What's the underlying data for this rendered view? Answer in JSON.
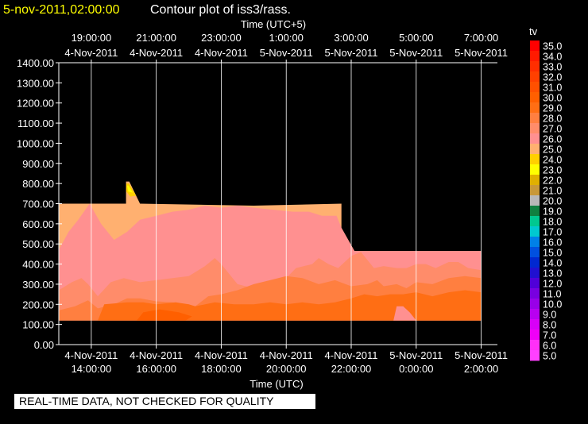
{
  "header": {
    "timestamp": "5-nov-2011,02:00:00",
    "title": "Contour plot of iss3/rass.",
    "timestamp_color": "#ffff00",
    "title_color": "#ffffff"
  },
  "notice": "REAL-TIME DATA, NOT CHECKED FOR QUALITY",
  "chart_data": {
    "type": "heatmap",
    "title": "Contour plot of iss3/rass.",
    "xlabel": "Time (UTC)",
    "x2label": "Time (UTC+5)",
    "ylabel": "",
    "ylim": [
      0,
      1400
    ],
    "yticks": [
      "0.00",
      "100.00",
      "200.00",
      "300.00",
      "400.00",
      "500.00",
      "600.00",
      "700.00",
      "800.00",
      "900.00",
      "1000.00",
      "1100.00",
      "1200.00",
      "1300.00",
      "1400.00"
    ],
    "xlim_hours": [
      13.0,
      26.5
    ],
    "x_bottom_ticks": [
      {
        "date": "4-Nov-2011",
        "time": "14:00:00",
        "hour": 14
      },
      {
        "date": "4-Nov-2011",
        "time": "16:00:00",
        "hour": 16
      },
      {
        "date": "4-Nov-2011",
        "time": "18:00:00",
        "hour": 18
      },
      {
        "date": "4-Nov-2011",
        "time": "20:00:00",
        "hour": 20
      },
      {
        "date": "4-Nov-2011",
        "time": "22:00:00",
        "hour": 22
      },
      {
        "date": "5-Nov-2011",
        "time": "0:00:00",
        "hour": 24
      },
      {
        "date": "5-Nov-2011",
        "time": "2:00:00",
        "hour": 26
      }
    ],
    "x_top_ticks": [
      {
        "time": "19:00:00",
        "date": "4-Nov-2011",
        "hour": 14
      },
      {
        "time": "21:00:00",
        "date": "4-Nov-2011",
        "hour": 16
      },
      {
        "time": "23:00:00",
        "date": "4-Nov-2011",
        "hour": 18
      },
      {
        "time": "1:00:00",
        "date": "5-Nov-2011",
        "hour": 20
      },
      {
        "time": "3:00:00",
        "date": "5-Nov-2011",
        "hour": 22
      },
      {
        "time": "5:00:00",
        "date": "5-Nov-2011",
        "hour": 24
      },
      {
        "time": "7:00:00",
        "date": "5-Nov-2011",
        "hour": 26
      }
    ],
    "grid": true,
    "colorbar": {
      "label": "tv",
      "levels": [
        {
          "label": "35.0",
          "color": "#ff0000"
        },
        {
          "label": "34.0",
          "color": "#ff1a00"
        },
        {
          "label": "33.0",
          "color": "#ff2e00"
        },
        {
          "label": "32.0",
          "color": "#ff4000"
        },
        {
          "label": "31.0",
          "color": "#ff5000"
        },
        {
          "label": "30.0",
          "color": "#ff5f00"
        },
        {
          "label": "29.0",
          "color": "#ff6e14"
        },
        {
          "label": "28.0",
          "color": "#ff7f40"
        },
        {
          "label": "27.0",
          "color": "#ff8c6a"
        },
        {
          "label": "26.0",
          "color": "#ff9090"
        },
        {
          "label": "25.0",
          "color": "#ffb070"
        },
        {
          "label": "24.0",
          "color": "#ffd000"
        },
        {
          "label": "23.0",
          "color": "#ffff00"
        },
        {
          "label": "22.0",
          "color": "#e0b000"
        },
        {
          "label": "21.0",
          "color": "#c89838"
        },
        {
          "label": "20.0",
          "color": "#b8b8b8"
        },
        {
          "label": "19.0",
          "color": "#108040"
        },
        {
          "label": "18.0",
          "color": "#00c890"
        },
        {
          "label": "17.0",
          "color": "#00c8d0"
        },
        {
          "label": "16.0",
          "color": "#0080e8"
        },
        {
          "label": "15.0",
          "color": "#0050e0"
        },
        {
          "label": "14.0",
          "color": "#0028d0"
        },
        {
          "label": "13.0",
          "color": "#2010d0"
        },
        {
          "label": "12.0",
          "color": "#5000d8"
        },
        {
          "label": "11.0",
          "color": "#7800e0"
        },
        {
          "label": "10.0",
          "color": "#9800e8"
        },
        {
          "label": "9.0",
          "color": "#b800f0"
        },
        {
          "label": "8.0",
          "color": "#d800f8"
        },
        {
          "label": "7.0",
          "color": "#f000f8"
        },
        {
          "label": "6.0",
          "color": "#ff30f8"
        },
        {
          "label": "5.0",
          "color": "#ff40ff"
        }
      ]
    },
    "contour_bands": [
      {
        "level": "25.0",
        "points": [
          [
            13.0,
            120
          ],
          [
            13.0,
            700
          ],
          [
            15.07,
            700
          ],
          [
            15.07,
            810
          ],
          [
            15.17,
            810
          ],
          [
            15.5,
            700
          ],
          [
            19.0,
            690
          ],
          [
            21.7,
            700
          ],
          [
            21.7,
            580
          ],
          [
            22.1,
            465
          ],
          [
            26.0,
            465
          ],
          [
            26.0,
            120
          ]
        ]
      },
      {
        "level": "24.0",
        "points": [
          [
            15.08,
            800
          ],
          [
            15.16,
            800
          ],
          [
            15.38,
            740
          ],
          [
            15.2,
            735
          ],
          [
            15.08,
            760
          ]
        ]
      },
      {
        "level": "23.0",
        "points": [
          [
            15.1,
            790
          ],
          [
            15.14,
            790
          ],
          [
            15.28,
            755
          ],
          [
            15.14,
            760
          ]
        ]
      },
      {
        "level": "26.0",
        "points": [
          [
            13.0,
            120
          ],
          [
            13.0,
            470
          ],
          [
            13.3,
            560
          ],
          [
            13.6,
            620
          ],
          [
            13.95,
            700
          ],
          [
            14.3,
            600
          ],
          [
            14.7,
            520
          ],
          [
            15.1,
            560
          ],
          [
            15.5,
            620
          ],
          [
            16.0,
            640
          ],
          [
            16.5,
            660
          ],
          [
            17.0,
            670
          ],
          [
            17.5,
            690
          ],
          [
            18.0,
            680
          ],
          [
            18.5,
            690
          ],
          [
            19.0,
            680
          ],
          [
            19.6,
            670
          ],
          [
            20.2,
            660
          ],
          [
            20.7,
            660
          ],
          [
            21.1,
            640
          ],
          [
            21.55,
            640
          ],
          [
            21.7,
            580
          ],
          [
            22.1,
            465
          ],
          [
            26.0,
            465
          ],
          [
            26.0,
            120
          ]
        ]
      },
      {
        "level": "27.0",
        "points": [
          [
            13.0,
            120
          ],
          [
            13.0,
            270
          ],
          [
            13.4,
            310
          ],
          [
            13.7,
            330
          ],
          [
            13.9,
            300
          ],
          [
            14.2,
            240
          ],
          [
            14.6,
            310
          ],
          [
            15.0,
            330
          ],
          [
            15.5,
            310
          ],
          [
            16.0,
            320
          ],
          [
            16.5,
            330
          ],
          [
            17.0,
            340
          ],
          [
            17.5,
            390
          ],
          [
            17.8,
            430
          ],
          [
            18.0,
            400
          ],
          [
            18.5,
            300
          ],
          [
            19.0,
            280
          ],
          [
            19.5,
            290
          ],
          [
            20.0,
            330
          ],
          [
            20.3,
            380
          ],
          [
            20.8,
            400
          ],
          [
            21.0,
            430
          ],
          [
            21.3,
            400
          ],
          [
            21.6,
            380
          ],
          [
            22.0,
            440
          ],
          [
            22.3,
            460
          ],
          [
            22.7,
            380
          ],
          [
            23.0,
            390
          ],
          [
            23.4,
            380
          ],
          [
            23.7,
            380
          ],
          [
            24.0,
            400
          ],
          [
            24.3,
            400
          ],
          [
            24.6,
            380
          ],
          [
            25.0,
            410
          ],
          [
            25.3,
            410
          ],
          [
            25.6,
            380
          ],
          [
            26.0,
            370
          ],
          [
            26.0,
            120
          ]
        ]
      },
      {
        "level": "28.0",
        "points": [
          [
            13.0,
            120
          ],
          [
            13.0,
            170
          ],
          [
            13.5,
            190
          ],
          [
            13.9,
            220
          ],
          [
            14.2,
            180
          ],
          [
            14.7,
            200
          ],
          [
            15.1,
            230
          ],
          [
            15.5,
            230
          ],
          [
            16.0,
            215
          ],
          [
            16.5,
            210
          ],
          [
            16.9,
            200
          ],
          [
            17.2,
            190
          ],
          [
            17.6,
            240
          ],
          [
            18.0,
            250
          ],
          [
            18.5,
            270
          ],
          [
            19.0,
            300
          ],
          [
            19.5,
            320
          ],
          [
            20.0,
            340
          ],
          [
            20.5,
            330
          ],
          [
            21.0,
            300
          ],
          [
            21.5,
            320
          ],
          [
            22.0,
            290
          ],
          [
            22.5,
            300
          ],
          [
            22.8,
            320
          ],
          [
            23.0,
            290
          ],
          [
            23.4,
            300
          ],
          [
            23.7,
            280
          ],
          [
            24.0,
            310
          ],
          [
            24.5,
            300
          ],
          [
            25.0,
            330
          ],
          [
            25.5,
            340
          ],
          [
            26.0,
            330
          ],
          [
            26.0,
            120
          ]
        ]
      },
      {
        "level": "29.0",
        "points": [
          [
            14.2,
            120
          ],
          [
            14.4,
            200
          ],
          [
            15.1,
            210
          ],
          [
            15.6,
            210
          ],
          [
            16.0,
            200
          ],
          [
            16.6,
            210
          ],
          [
            17.0,
            200
          ],
          [
            17.2,
            190
          ],
          [
            17.8,
            210
          ],
          [
            18.4,
            200
          ],
          [
            19.0,
            200
          ],
          [
            19.5,
            210
          ],
          [
            20.0,
            200
          ],
          [
            20.5,
            210
          ],
          [
            21.0,
            200
          ],
          [
            21.5,
            210
          ],
          [
            22.0,
            230
          ],
          [
            22.4,
            250
          ],
          [
            22.8,
            240
          ],
          [
            23.2,
            250
          ],
          [
            23.6,
            250
          ],
          [
            24.0,
            260
          ],
          [
            24.5,
            240
          ],
          [
            25.0,
            260
          ],
          [
            25.5,
            270
          ],
          [
            26.0,
            260
          ],
          [
            26.0,
            120
          ]
        ]
      },
      {
        "level": "30.0",
        "points": [
          [
            15.4,
            120
          ],
          [
            15.6,
            160
          ],
          [
            16.1,
            175
          ],
          [
            16.7,
            160
          ],
          [
            17.1,
            140
          ],
          [
            16.9,
            120
          ]
        ]
      },
      {
        "level": "26.0",
        "points": [
          [
            23.3,
            120
          ],
          [
            23.4,
            190
          ],
          [
            23.6,
            190
          ],
          [
            23.8,
            160
          ],
          [
            24.0,
            120
          ]
        ]
      }
    ]
  }
}
